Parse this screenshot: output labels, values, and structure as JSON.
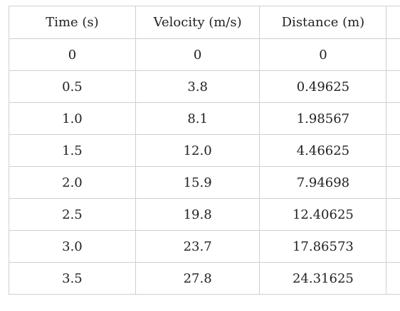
{
  "table": {
    "headers": [
      "Time (s)",
      "Velocity (m/s)",
      "Distance (m)"
    ],
    "rows": [
      [
        "0",
        "0",
        "0"
      ],
      [
        "0.5",
        "3.8",
        "0.49625"
      ],
      [
        "1.0",
        "8.1",
        "1.98567"
      ],
      [
        "1.5",
        "12.0",
        "4.46625"
      ],
      [
        "2.0",
        "15.9",
        "7.94698"
      ],
      [
        "2.5",
        "19.8",
        "12.40625"
      ],
      [
        "3.0",
        "23.7",
        "17.86573"
      ],
      [
        "3.5",
        "27.8",
        "24.31625"
      ]
    ]
  }
}
